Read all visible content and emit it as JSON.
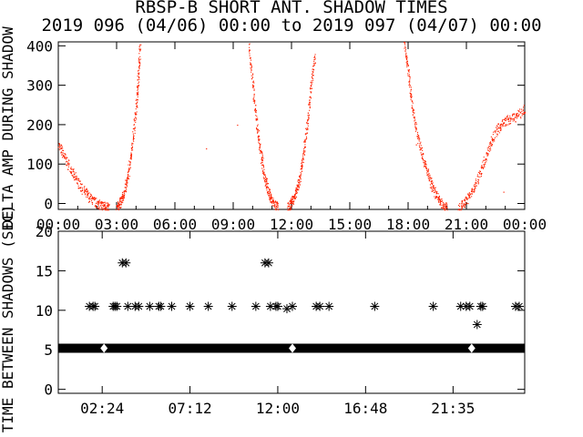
{
  "title_line1": "RBSP-B SHORT ANT. SHADOW TIMES",
  "title_line2": "2019 096 (04/06) 00:00 to 2019 097 (04/07) 00:00",
  "colors": {
    "trace": "#ff2200",
    "axes": "#000000",
    "star": "#000000",
    "background": "#ffffff"
  },
  "chart_data": [
    {
      "type": "scatter",
      "ylabel": "DELTA AMP DURING SHADOW",
      "xlim": [
        0,
        24
      ],
      "ylim": [
        -15,
        410
      ],
      "yticks": [
        "0",
        "100",
        "200",
        "300",
        "400"
      ],
      "xticks": [
        "00:00",
        "03:00",
        "06:00",
        "09:00",
        "12:00",
        "15:00",
        "18:00",
        "21:00",
        "00:00"
      ],
      "grid": false,
      "series": [
        {
          "segments": [
            {
              "x": [
                0.0,
                0.4,
                0.8,
                1.2,
                1.6,
                2.0,
                2.3,
                2.6
              ],
              "y": [
                150,
                110,
                70,
                40,
                15,
                0,
                -5,
                -10
              ]
            },
            {
              "x": [
                3.0,
                3.2,
                3.4,
                3.6,
                3.8,
                4.0,
                4.1,
                4.2
              ],
              "y": [
                -10,
                5,
                30,
                80,
                150,
                240,
                320,
                400
              ]
            },
            {
              "x": [
                9.8,
                10.0,
                10.2,
                10.4,
                10.6,
                10.8,
                11.0,
                11.3
              ],
              "y": [
                400,
                300,
                200,
                130,
                70,
                30,
                5,
                -10
              ]
            },
            {
              "x": [
                11.8,
                12.0,
                12.2,
                12.4,
                12.6,
                12.8,
                13.0,
                13.2
              ],
              "y": [
                -10,
                5,
                25,
                60,
                120,
                200,
                300,
                380
              ]
            },
            {
              "x": [
                17.8,
                18.0,
                18.2,
                18.5,
                18.8,
                19.1,
                19.4,
                19.7,
                20.0
              ],
              "y": [
                410,
                330,
                240,
                170,
                110,
                60,
                25,
                0,
                -10
              ]
            },
            {
              "x": [
                20.6,
                21.0,
                21.4,
                21.8,
                22.2,
                22.6,
                23.0,
                23.5,
                24.0
              ],
              "y": [
                -10,
                10,
                40,
                90,
                150,
                190,
                210,
                220,
                240
              ]
            }
          ],
          "outliers": [
            {
              "x": 9.2,
              "y": 200
            },
            {
              "x": 7.6,
              "y": 140
            },
            {
              "x": 18.4,
              "y": 150
            },
            {
              "x": 22.9,
              "y": 30
            }
          ]
        }
      ]
    },
    {
      "type": "scatter",
      "ylabel": "TIME BETWEEN SHADOWS (SEC)",
      "xlim": [
        0,
        25.5
      ],
      "ylim": [
        -0.5,
        20
      ],
      "yticks": [
        "0",
        "5",
        "10",
        "15",
        "20"
      ],
      "xticks": [
        "02:24",
        "07:12",
        "12:00",
        "16:48",
        "21:35"
      ],
      "xtick_values": [
        2.4,
        7.2,
        12.0,
        16.8,
        21.583
      ],
      "grid": false,
      "baseline": {
        "y": 5.2,
        "x_start": 0.0,
        "x_end": 25.5
      },
      "points": [
        {
          "x": 1.7,
          "y": 10.5
        },
        {
          "x": 1.9,
          "y": 10.5
        },
        {
          "x": 2.0,
          "y": 10.5
        },
        {
          "x": 3.0,
          "y": 10.5
        },
        {
          "x": 3.1,
          "y": 10.5
        },
        {
          "x": 3.2,
          "y": 10.5
        },
        {
          "x": 3.5,
          "y": 16.0
        },
        {
          "x": 3.7,
          "y": 16.0
        },
        {
          "x": 3.8,
          "y": 10.5
        },
        {
          "x": 4.2,
          "y": 10.5
        },
        {
          "x": 4.4,
          "y": 10.5
        },
        {
          "x": 5.0,
          "y": 10.5
        },
        {
          "x": 5.5,
          "y": 10.5
        },
        {
          "x": 5.6,
          "y": 10.5
        },
        {
          "x": 6.2,
          "y": 10.5
        },
        {
          "x": 7.2,
          "y": 10.5
        },
        {
          "x": 8.2,
          "y": 10.5
        },
        {
          "x": 9.5,
          "y": 10.5
        },
        {
          "x": 10.8,
          "y": 10.5
        },
        {
          "x": 11.3,
          "y": 16.0
        },
        {
          "x": 11.5,
          "y": 16.0
        },
        {
          "x": 11.6,
          "y": 10.5
        },
        {
          "x": 11.9,
          "y": 10.5
        },
        {
          "x": 12.0,
          "y": 10.5
        },
        {
          "x": 12.5,
          "y": 10.2
        },
        {
          "x": 12.8,
          "y": 10.5
        },
        {
          "x": 14.1,
          "y": 10.5
        },
        {
          "x": 14.3,
          "y": 10.5
        },
        {
          "x": 14.8,
          "y": 10.5
        },
        {
          "x": 17.3,
          "y": 10.5
        },
        {
          "x": 20.5,
          "y": 10.5
        },
        {
          "x": 22.0,
          "y": 10.5
        },
        {
          "x": 22.3,
          "y": 10.5
        },
        {
          "x": 22.5,
          "y": 10.5
        },
        {
          "x": 22.9,
          "y": 8.2
        },
        {
          "x": 23.1,
          "y": 10.5
        },
        {
          "x": 23.2,
          "y": 10.5
        },
        {
          "x": 25.0,
          "y": 10.5
        },
        {
          "x": 25.2,
          "y": 10.5
        }
      ],
      "gaps": [
        2.5,
        12.8,
        22.6
      ]
    }
  ]
}
